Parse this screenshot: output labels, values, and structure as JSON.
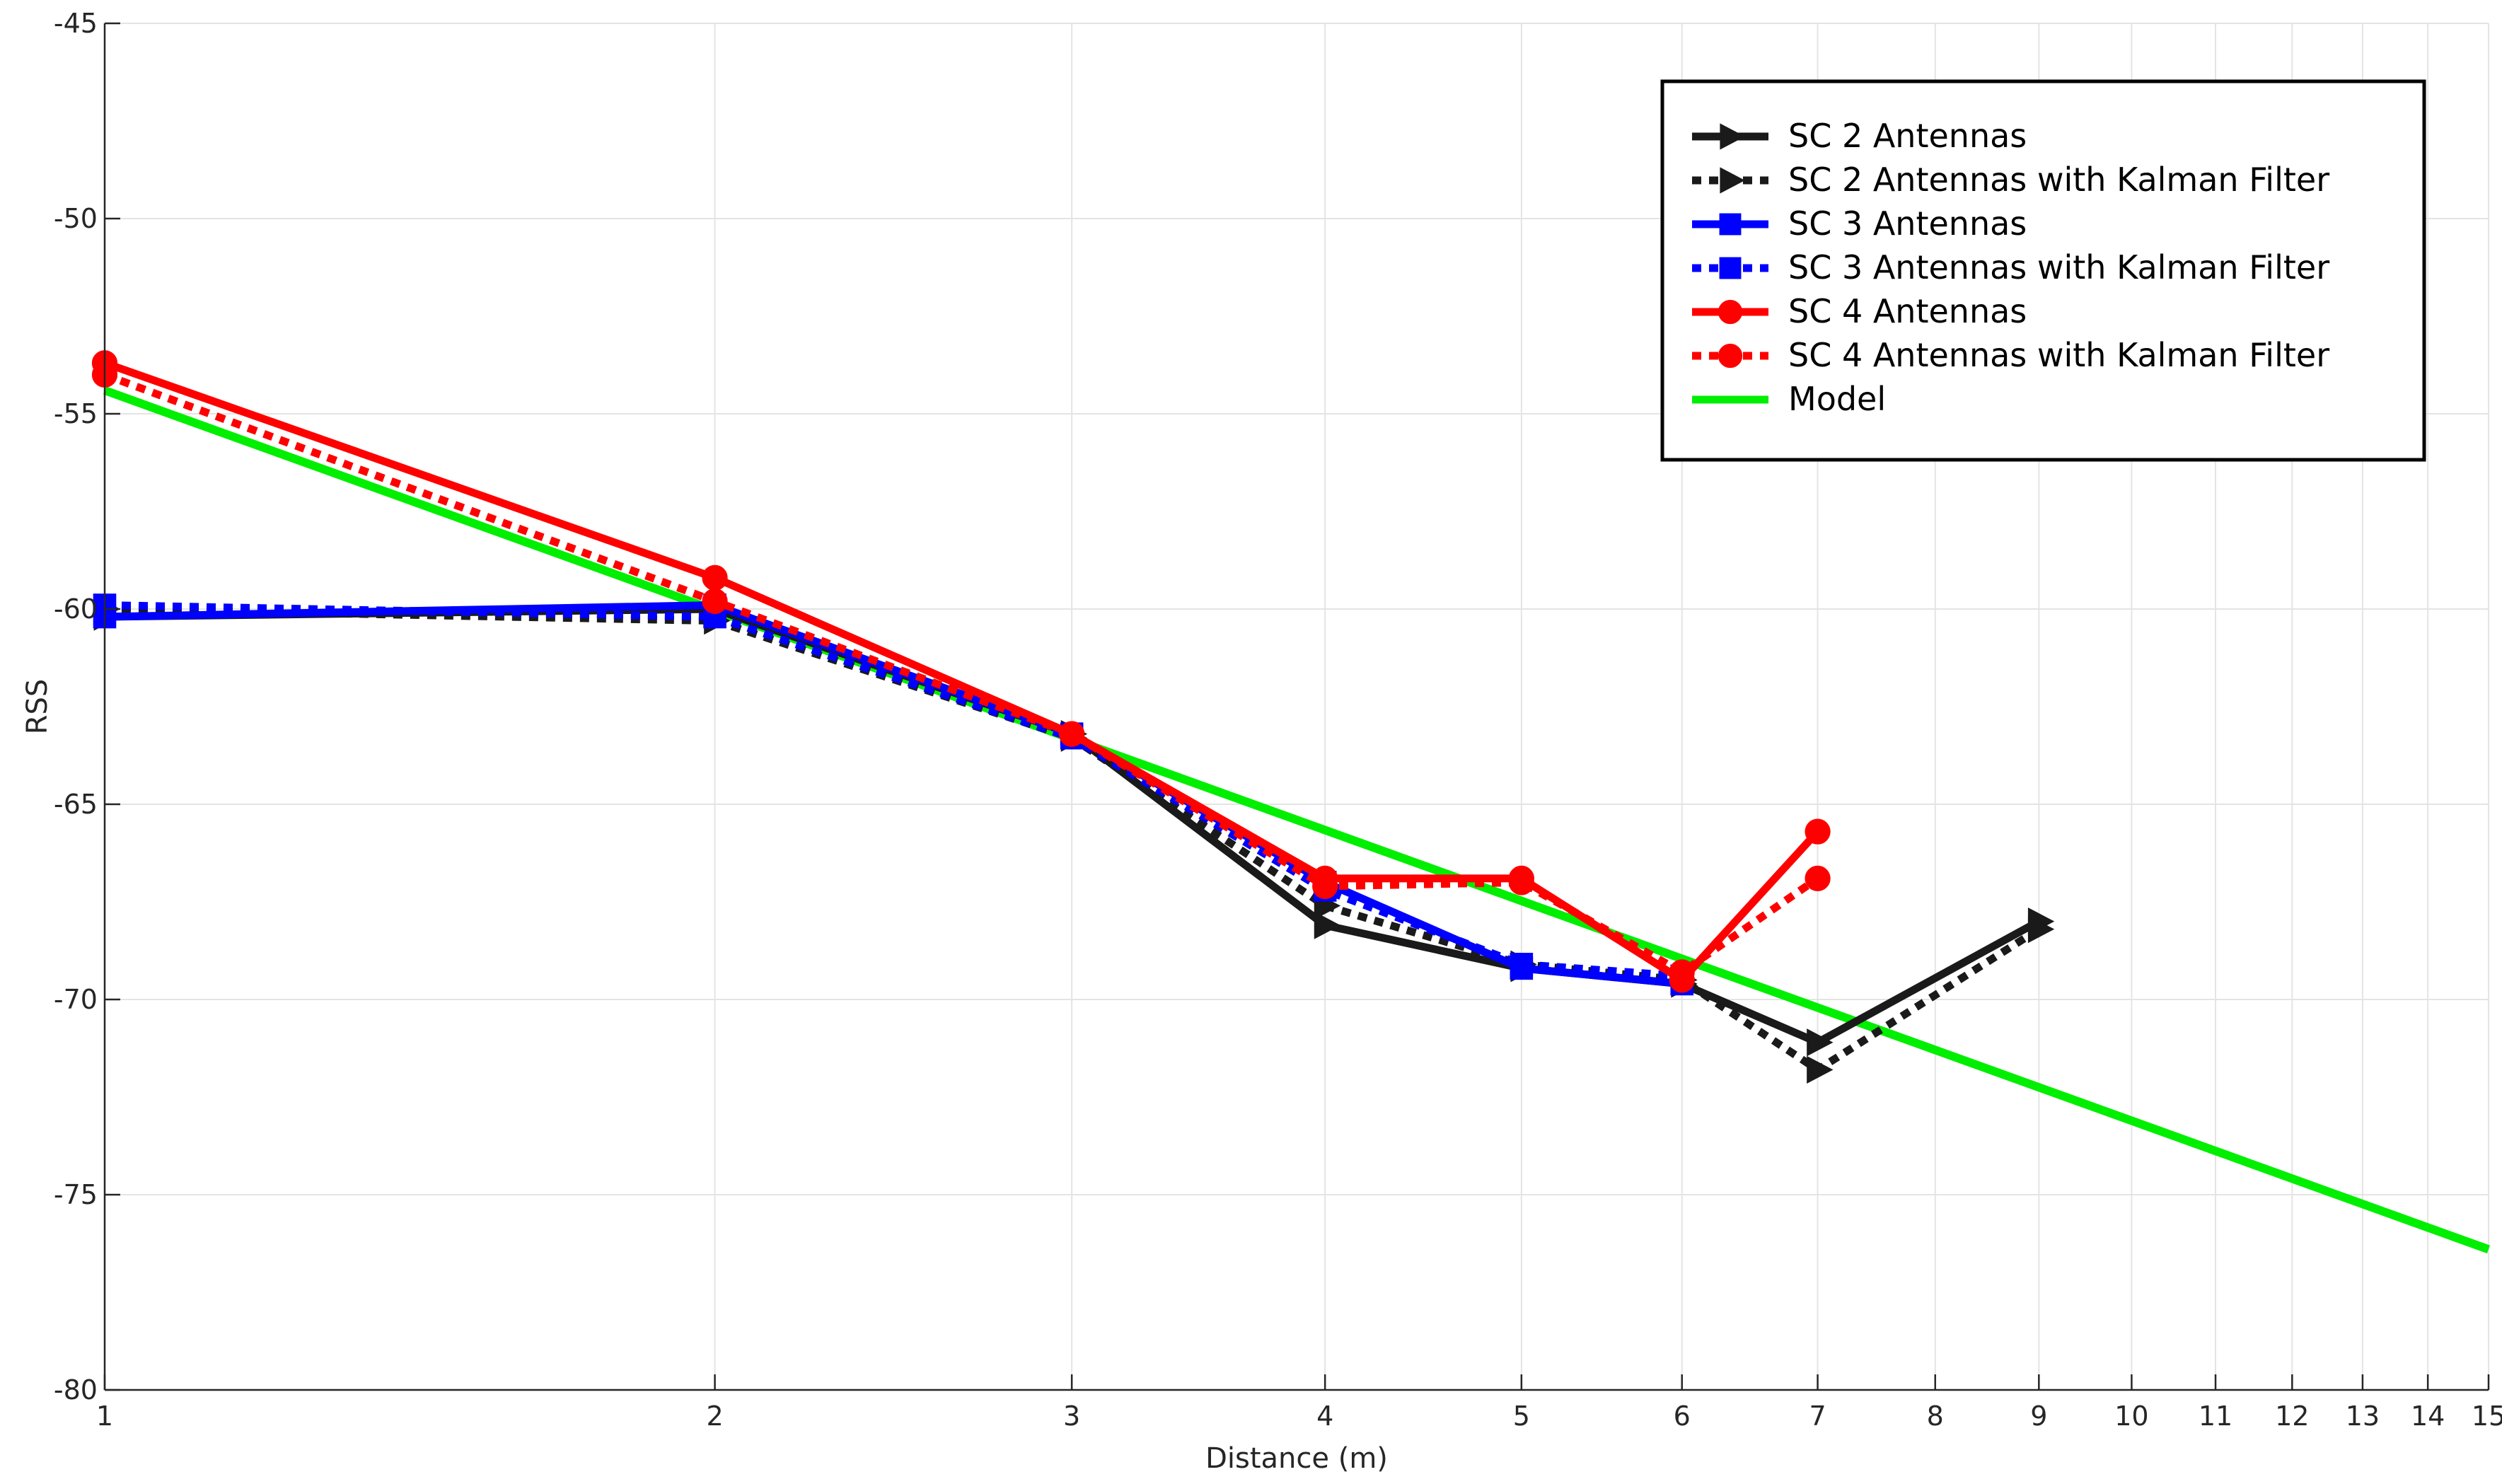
{
  "chart_data": {
    "type": "line",
    "title": "",
    "xlabel": "Distance (m)",
    "ylabel": "RSS",
    "x_scale": "log",
    "xlim": [
      1,
      15
    ],
    "ylim": [
      -80,
      -45
    ],
    "x_ticks": [
      1,
      2,
      3,
      4,
      5,
      6,
      7,
      8,
      9,
      10,
      11,
      12,
      13,
      14,
      15
    ],
    "y_ticks": [
      -80,
      -75,
      -70,
      -65,
      -60,
      -55,
      -50,
      -45
    ],
    "grid": true,
    "legend_position": "top-right",
    "series": [
      {
        "name": "SC 2 Antennas",
        "color": "#1a1a1a",
        "line": "solid",
        "marker": "triangle-right",
        "x": [
          1,
          2,
          3,
          4,
          5,
          6,
          7,
          9
        ],
        "y": [
          -60.2,
          -60.0,
          -63.2,
          -68.1,
          -69.2,
          -69.6,
          -71.1,
          -68.0
        ]
      },
      {
        "name": "SC 2 Antennas with Kalman Filter",
        "color": "#1a1a1a",
        "line": "dotted",
        "marker": "triangle-right",
        "x": [
          1,
          2,
          3,
          4,
          5,
          6,
          7,
          9
        ],
        "y": [
          -60.0,
          -60.3,
          -63.3,
          -67.6,
          -69.1,
          -69.5,
          -71.8,
          -68.2
        ]
      },
      {
        "name": "SC 3 Antennas",
        "color": "#0000ff",
        "line": "solid",
        "marker": "square",
        "x": [
          1,
          2,
          3,
          4,
          5,
          6
        ],
        "y": [
          -60.2,
          -59.9,
          -63.2,
          -67.0,
          -69.2,
          -69.6
        ]
      },
      {
        "name": "SC 3 Antennas with Kalman Filter",
        "color": "#0000ff",
        "line": "dotted",
        "marker": "square",
        "x": [
          1,
          2,
          3,
          4,
          5,
          6
        ],
        "y": [
          -59.9,
          -60.2,
          -63.3,
          -67.2,
          -69.1,
          -69.4
        ]
      },
      {
        "name": "SC 4 Antennas",
        "color": "#ff0000",
        "line": "solid",
        "marker": "circle",
        "x": [
          1,
          2,
          3,
          4,
          5,
          6,
          7
        ],
        "y": [
          -53.7,
          -59.2,
          -63.2,
          -66.9,
          -66.9,
          -69.5,
          -65.7
        ]
      },
      {
        "name": "SC 4 Antennas with Kalman Filter",
        "color": "#ff0000",
        "line": "dotted",
        "marker": "circle",
        "x": [
          1,
          2,
          3,
          4,
          5,
          6,
          7
        ],
        "y": [
          -54.0,
          -59.8,
          -63.2,
          -67.1,
          -67.0,
          -69.3,
          -66.9
        ]
      },
      {
        "name": "Model",
        "color": "#00ee00",
        "line": "solid",
        "marker": "none",
        "x": [
          1,
          15
        ],
        "y": [
          -54.4,
          -76.4
        ]
      }
    ]
  }
}
